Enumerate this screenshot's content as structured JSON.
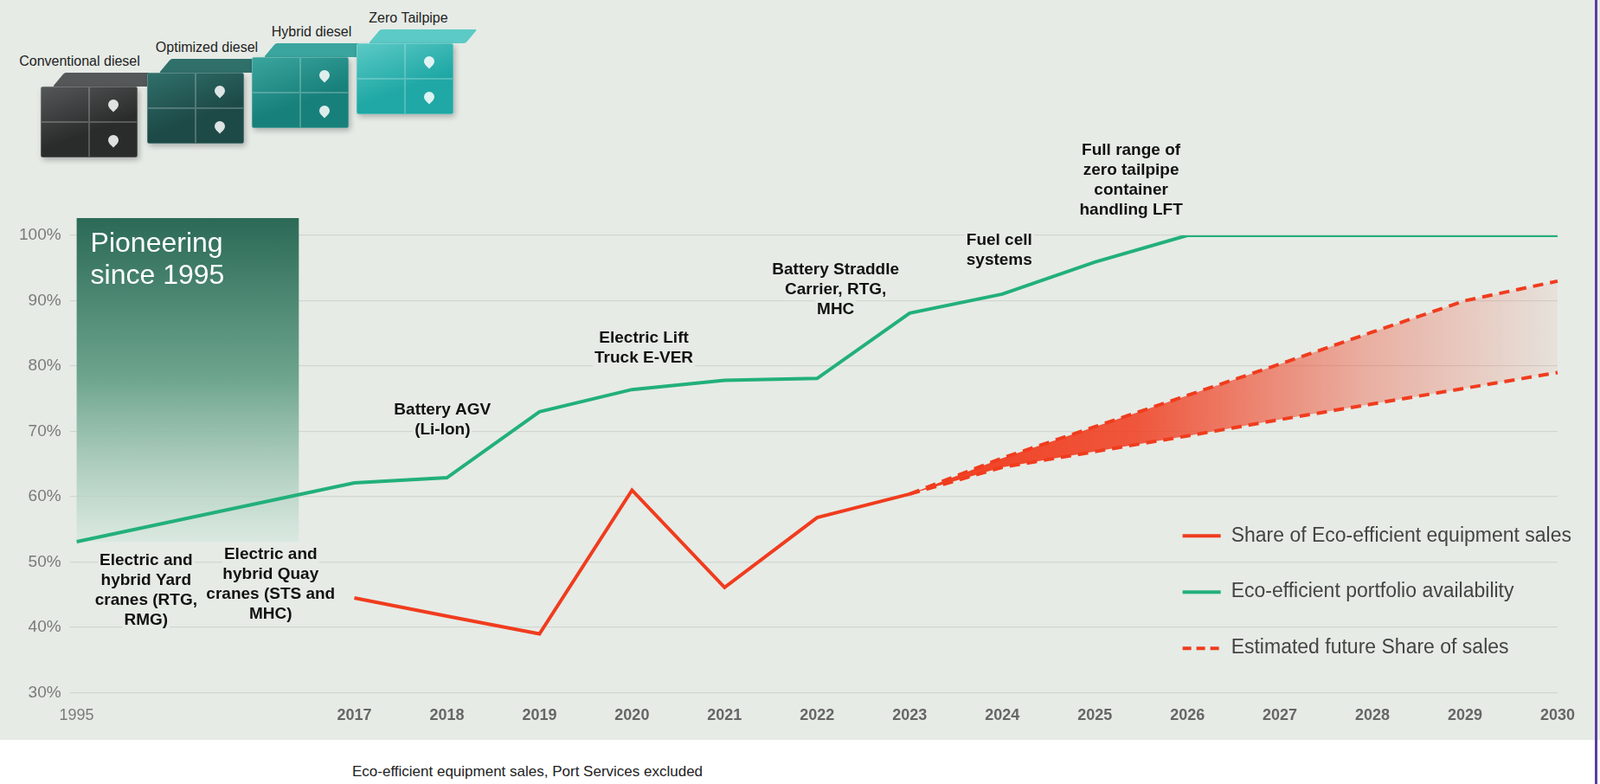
{
  "chart_data": {
    "type": "line",
    "categories": [
      "1995",
      null,
      null,
      "2017",
      "2018",
      "2019",
      "2020",
      "2021",
      "2022",
      "2023",
      "2024",
      "2025",
      "2026",
      "2027",
      "2028",
      "2029",
      "2030"
    ],
    "series": [
      {
        "name": "Share of Eco-efficient equipment sales",
        "color": "#f03c1e",
        "line_style": "solid",
        "marker": "none",
        "values": [
          null,
          null,
          null,
          44.5,
          41.7,
          39.0,
          61.0,
          46.1,
          56.8,
          60.4,
          null,
          null,
          null,
          null,
          null,
          null,
          null
        ]
      },
      {
        "name": "Eco-efficient portfolio availability",
        "color": "#22b07a",
        "line_style": "solid",
        "marker": "none",
        "values": [
          53.1,
          null,
          null,
          62.1,
          62.9,
          73.0,
          76.4,
          77.8,
          78.1,
          88.1,
          91.0,
          95.9,
          100,
          100,
          100,
          100,
          100
        ]
      },
      {
        "name": "Estimated future Share of sales",
        "color": "#f03c1e",
        "line_style": "dashed",
        "marker": "none",
        "low": [
          null,
          null,
          null,
          null,
          null,
          null,
          null,
          null,
          null,
          60.4,
          64.5,
          66.9,
          69.3,
          71.8,
          74.2,
          76.6,
          79.0
        ],
        "high": [
          null,
          null,
          null,
          null,
          null,
          null,
          null,
          null,
          null,
          60.4,
          65.9,
          70.7,
          75.5,
          80.3,
          85.2,
          90.0,
          93.0
        ]
      }
    ],
    "ylim": [
      30,
      100
    ],
    "yticks": [
      {
        "value": 30,
        "label": "30%"
      },
      {
        "value": 40,
        "label": "40%"
      },
      {
        "value": 50,
        "label": "50%"
      },
      {
        "value": 60,
        "label": "60%"
      },
      {
        "value": 70,
        "label": "70%"
      },
      {
        "value": 80,
        "label": "80%"
      },
      {
        "value": 90,
        "label": "90%"
      },
      {
        "value": 100,
        "label": "100%"
      }
    ],
    "grid": true,
    "legend": "lower right",
    "box_title": "Pioneering since 1995",
    "stages": [
      "Conventional diesel",
      "Optimized diesel",
      "Hybrid diesel",
      "Zero Tailpipe"
    ],
    "annotations": [
      "Electric and hybrid Yard cranes (RTG, RMG)",
      "Electric and hybrid Quay cranes (STS and MHC)",
      "Battery AGV (Li-Ion)",
      "Electric Lift Truck E-VER",
      "Battery Straddle Carrier, RTG, MHC",
      "Fuel cell systems",
      "Full range of zero tailpipe container handling LFT"
    ],
    "note": "Eco-efficient equipment sales, Port Services excluded"
  }
}
